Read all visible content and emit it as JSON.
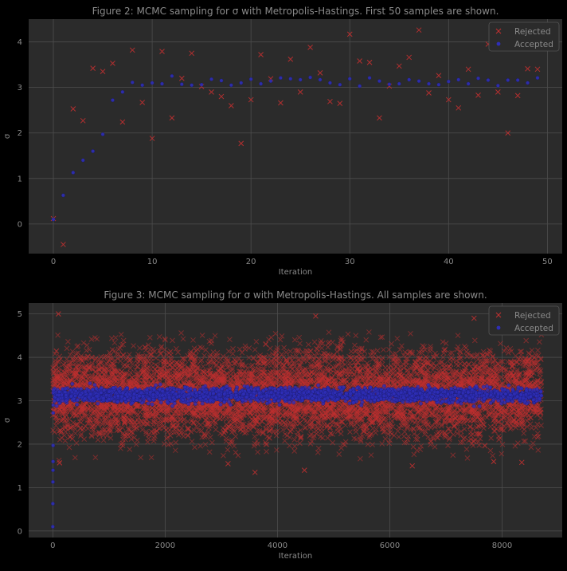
{
  "colors": {
    "figure_bg": "#000000",
    "axes_bg": "#2b2b2b",
    "grid": "#4d4d4d",
    "text": "#8a8a8a",
    "rejected": "#c03030",
    "accepted": "#2e2eb8",
    "legend_bg": "#2b2b2b",
    "legend_edge": "#555555"
  },
  "chart_data": [
    {
      "type": "scatter",
      "title": "Figure 2: MCMC sampling for σ with Metropolis-Hastings. First 50 samples are shown.",
      "xlabel": "Iteration",
      "ylabel": "σ",
      "xlim": [
        -2.5,
        51.5
      ],
      "ylim": [
        -0.65,
        4.5
      ],
      "xticks": [
        0,
        10,
        20,
        30,
        40,
        50
      ],
      "yticks": [
        0,
        1,
        2,
        3,
        4
      ],
      "grid": true,
      "legend": {
        "position": "top-right",
        "entries": [
          "Rejected",
          "Accepted"
        ]
      },
      "series": [
        {
          "name": "Rejected",
          "marker": "x",
          "points": [
            [
              0,
              0.12
            ],
            [
              1,
              -0.45
            ],
            [
              2,
              2.53
            ],
            [
              3,
              2.27
            ],
            [
              4,
              3.42
            ],
            [
              5,
              3.35
            ],
            [
              6,
              3.53
            ],
            [
              7,
              2.24
            ],
            [
              8,
              3.82
            ],
            [
              9,
              2.67
            ],
            [
              10,
              1.88
            ],
            [
              11,
              3.79
            ],
            [
              12,
              2.33
            ],
            [
              13,
              3.2
            ],
            [
              14,
              3.75
            ],
            [
              15,
              3.02
            ],
            [
              16,
              2.9
            ],
            [
              17,
              2.8
            ],
            [
              18,
              2.6
            ],
            [
              19,
              1.77
            ],
            [
              20,
              2.73
            ],
            [
              21,
              3.72
            ],
            [
              22,
              3.19
            ],
            [
              23,
              2.66
            ],
            [
              24,
              3.62
            ],
            [
              25,
              2.9
            ],
            [
              26,
              3.88
            ],
            [
              27,
              3.32
            ],
            [
              28,
              2.69
            ],
            [
              29,
              2.65
            ],
            [
              30,
              4.17
            ],
            [
              31,
              3.58
            ],
            [
              32,
              3.55
            ],
            [
              33,
              2.33
            ],
            [
              34,
              3.03
            ],
            [
              35,
              3.47
            ],
            [
              36,
              3.66
            ],
            [
              37,
              4.26
            ],
            [
              38,
              2.88
            ],
            [
              39,
              3.26
            ],
            [
              40,
              2.73
            ],
            [
              41,
              2.55
            ],
            [
              42,
              3.4
            ],
            [
              43,
              2.83
            ],
            [
              44,
              3.95
            ],
            [
              45,
              2.9
            ],
            [
              46,
              2.0
            ],
            [
              47,
              2.82
            ],
            [
              48,
              3.41
            ],
            [
              49,
              3.4
            ]
          ]
        },
        {
          "name": "Accepted",
          "marker": "o",
          "points": [
            [
              0,
              0.1
            ],
            [
              1,
              0.63
            ],
            [
              2,
              1.13
            ],
            [
              3,
              1.4
            ],
            [
              4,
              1.6
            ],
            [
              5,
              1.97
            ],
            [
              6,
              2.72
            ],
            [
              7,
              2.9
            ],
            [
              8,
              3.11
            ],
            [
              9,
              3.05
            ],
            [
              10,
              3.1
            ],
            [
              11,
              3.08
            ],
            [
              12,
              3.25
            ],
            [
              13,
              3.07
            ],
            [
              14,
              3.05
            ],
            [
              15,
              3.06
            ],
            [
              16,
              3.18
            ],
            [
              17,
              3.15
            ],
            [
              18,
              3.05
            ],
            [
              19,
              3.1
            ],
            [
              20,
              3.18
            ],
            [
              21,
              3.08
            ],
            [
              22,
              3.14
            ],
            [
              23,
              3.21
            ],
            [
              24,
              3.19
            ],
            [
              25,
              3.17
            ],
            [
              26,
              3.22
            ],
            [
              27,
              3.17
            ],
            [
              28,
              3.1
            ],
            [
              29,
              3.06
            ],
            [
              30,
              3.19
            ],
            [
              31,
              3.03
            ],
            [
              32,
              3.21
            ],
            [
              33,
              3.14
            ],
            [
              34,
              3.07
            ],
            [
              35,
              3.08
            ],
            [
              36,
              3.17
            ],
            [
              37,
              3.14
            ],
            [
              38,
              3.08
            ],
            [
              39,
              3.06
            ],
            [
              40,
              3.13
            ],
            [
              41,
              3.17
            ],
            [
              42,
              3.08
            ],
            [
              43,
              3.2
            ],
            [
              44,
              3.16
            ],
            [
              45,
              3.04
            ],
            [
              46,
              3.16
            ],
            [
              47,
              3.16
            ],
            [
              48,
              3.1
            ],
            [
              49,
              3.21
            ]
          ]
        }
      ]
    },
    {
      "type": "scatter",
      "title": "Figure 3: MCMC sampling for σ with Metropolis-Hastings. All samples are shown.",
      "xlabel": "Iteration",
      "ylabel": "σ",
      "xlim": [
        -430,
        9070
      ],
      "ylim": [
        -0.15,
        5.25
      ],
      "xticks": [
        0,
        2000,
        4000,
        6000,
        8000
      ],
      "yticks": [
        0,
        1,
        2,
        3,
        4,
        5
      ],
      "grid": true,
      "legend": {
        "position": "top-right",
        "entries": [
          "Rejected",
          "Accepted"
        ]
      },
      "series": [
        {
          "name": "Rejected",
          "marker": "x",
          "description": "about 8700 rejected proposals spread roughly between 1.4 and 5.0, dense between 2.0 and 4.3",
          "iterations": [
            0,
            8700
          ],
          "center": 3.15,
          "spread": 0.5,
          "outliers": [
            [
              100,
              5.0
            ],
            [
              4680,
              4.95
            ],
            [
              7500,
              4.9
            ],
            [
              3600,
              1.35
            ],
            [
              4480,
              1.4
            ],
            [
              6400,
              1.5
            ],
            [
              3120,
              1.55
            ],
            [
              120,
              1.57
            ],
            [
              7850,
              1.6
            ],
            [
              8350,
              1.58
            ]
          ]
        },
        {
          "name": "Accepted",
          "marker": "o",
          "description": "accepted chain concentrated in a band between about 2.95 and 3.35 after a short burn-in",
          "iterations": [
            0,
            8700
          ],
          "center": 3.13,
          "spread": 0.08,
          "burn_in": [
            [
              0,
              0.1
            ],
            [
              1,
              0.63
            ],
            [
              2,
              1.13
            ],
            [
              3,
              1.4
            ],
            [
              4,
              1.6
            ],
            [
              5,
              1.97
            ],
            [
              6,
              2.72
            ],
            [
              7,
              2.9
            ]
          ]
        }
      ]
    }
  ]
}
